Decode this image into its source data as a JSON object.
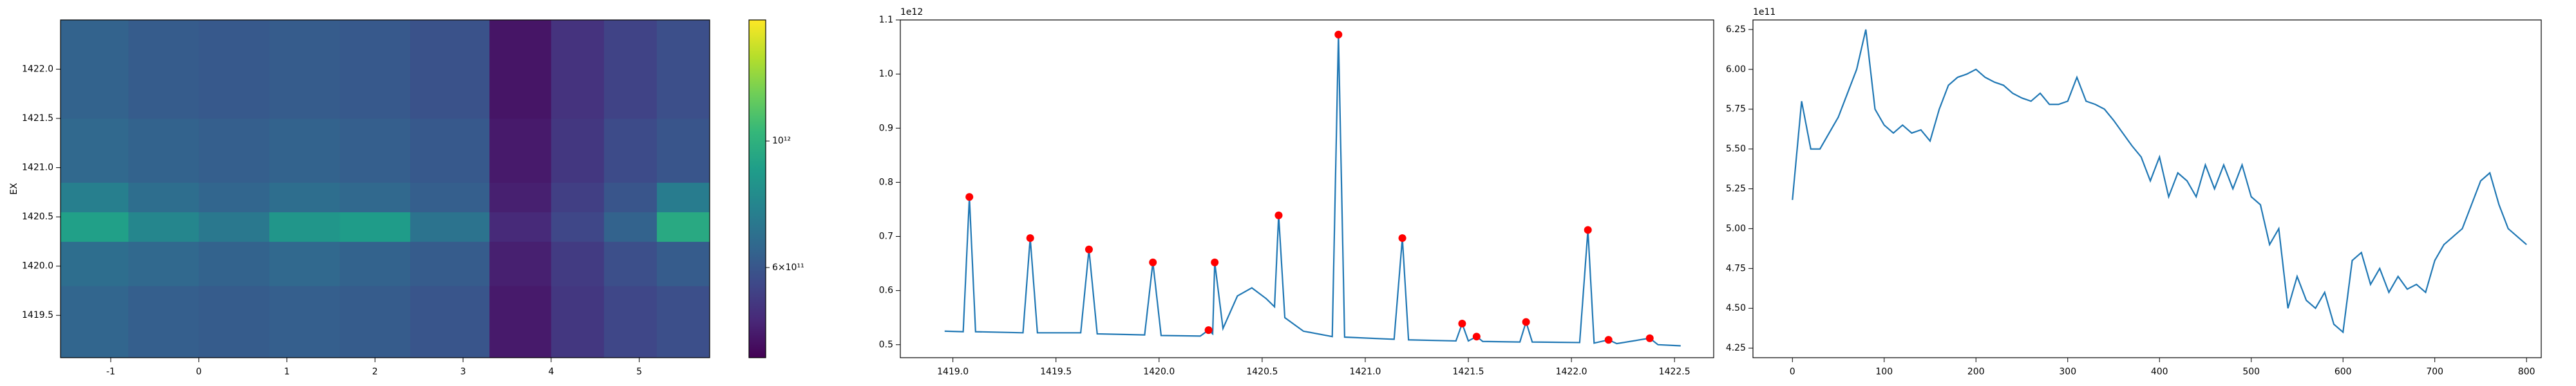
{
  "chart_data": [
    {
      "type": "heatmap",
      "ylabel": "EX",
      "x_edges": [
        -1.57,
        -0.8,
        0,
        0.8,
        1.6,
        2.4,
        3.3,
        4.0,
        4.6,
        5.2,
        5.8
      ],
      "y_edges": [
        1419.07,
        1419.8,
        1420.25,
        1420.55,
        1420.85,
        1421.5,
        1422.5
      ],
      "z": [
        [
          650000000000.0,
          630000000000.0,
          620000000000.0,
          630000000000.0,
          620000000000.0,
          600000000000.0,
          460000000000.0,
          520000000000.0,
          560000000000.0,
          580000000000.0
        ],
        [
          680000000000.0,
          660000000000.0,
          640000000000.0,
          660000000000.0,
          640000000000.0,
          620000000000.0,
          470000000000.0,
          530000000000.0,
          580000000000.0,
          620000000000.0
        ],
        [
          900000000000.0,
          780000000000.0,
          720000000000.0,
          850000000000.0,
          880000000000.0,
          700000000000.0,
          490000000000.0,
          560000000000.0,
          640000000000.0,
          950000000000.0
        ],
        [
          750000000000.0,
          680000000000.0,
          650000000000.0,
          680000000000.0,
          660000000000.0,
          630000000000.0,
          470000000000.0,
          540000000000.0,
          600000000000.0,
          740000000000.0
        ],
        [
          660000000000.0,
          640000000000.0,
          630000000000.0,
          640000000000.0,
          630000000000.0,
          610000000000.0,
          460000000000.0,
          520000000000.0,
          570000000000.0,
          600000000000.0
        ],
        [
          640000000000.0,
          620000000000.0,
          610000000000.0,
          620000000000.0,
          610000000000.0,
          590000000000.0,
          450000000000.0,
          510000000000.0,
          550000000000.0,
          580000000000.0
        ]
      ],
      "xlim": [
        -1.57,
        5.8
      ],
      "xticks": [
        -1,
        0,
        1,
        2,
        3,
        4,
        5
      ],
      "ylim": [
        1419.07,
        1422.5
      ],
      "yticks": [
        1419.5,
        {
          "value": 1420,
          "label": "1420.0"
        },
        1420.5,
        {
          "value": 1421,
          "label": "1421.0"
        },
        1421.5,
        {
          "value": 1422,
          "label": "1422.0"
        }
      ],
      "colorbar": {
        "colormap": "viridis",
        "log": true,
        "lim": [
          417000000000.0,
          1630000000000.0
        ],
        "ticks": [
          {
            "value": 1000000000000.0,
            "label": "10¹²"
          },
          {
            "value": 600000000000.0,
            "label": "6×10¹¹"
          }
        ]
      }
    },
    {
      "type": "line",
      "offset_text": "1e12",
      "series": [
        {
          "color": "#1f77b4",
          "x": [
            1418.96,
            1419.05,
            1419.08,
            1419.11,
            1419.34,
            1419.375,
            1419.41,
            1419.62,
            1419.66,
            1419.7,
            1419.93,
            1419.97,
            1420.01,
            1420.2,
            1420.24,
            1420.26,
            1420.27,
            1420.31,
            1420.38,
            1420.45,
            1420.52,
            1420.56,
            1420.58,
            1420.61,
            1420.7,
            1420.84,
            1420.87,
            1420.9,
            1421.14,
            1421.18,
            1421.21,
            1421.44,
            1421.47,
            1421.5,
            1421.54,
            1421.57,
            1421.75,
            1421.78,
            1421.81,
            1422.04,
            1422.08,
            1422.11,
            1422.18,
            1422.22,
            1422.38,
            1422.42,
            1422.53
          ],
          "values": [
            0.525,
            0.524,
            0.773,
            0.524,
            0.522,
            0.697,
            0.522,
            0.522,
            0.676,
            0.52,
            0.518,
            0.652,
            0.517,
            0.516,
            0.527,
            0.52,
            0.652,
            0.53,
            0.59,
            0.605,
            0.585,
            0.57,
            0.739,
            0.55,
            0.525,
            0.515,
            1.073,
            0.514,
            0.51,
            0.697,
            0.509,
            0.507,
            0.539,
            0.507,
            0.515,
            0.506,
            0.505,
            0.542,
            0.505,
            0.504,
            0.712,
            0.503,
            0.509,
            0.502,
            0.512,
            0.5,
            0.498
          ]
        },
        {
          "color": "red",
          "style": "markers",
          "x": [
            1419.08,
            1419.375,
            1419.66,
            1419.97,
            1420.24,
            1420.27,
            1420.58,
            1420.87,
            1421.18,
            1421.47,
            1421.54,
            1421.78,
            1422.08,
            1422.18,
            1422.38
          ],
          "values": [
            0.773,
            0.697,
            0.676,
            0.652,
            0.527,
            0.652,
            0.739,
            1.073,
            0.697,
            0.539,
            0.515,
            0.542,
            0.712,
            0.509,
            0.512
          ]
        }
      ],
      "xlim": [
        1418.745,
        1422.69
      ],
      "xticks": [
        {
          "value": 1419,
          "label": "1419.0"
        },
        1419.5,
        {
          "value": 1420,
          "label": "1420.0"
        },
        1420.5,
        {
          "value": 1421,
          "label": "1421.0"
        },
        1421.5,
        {
          "value": 1422,
          "label": "1422.0"
        },
        1422.5
      ],
      "ylim": [
        0.476,
        1.1
      ],
      "yticks": [
        0.5,
        0.6,
        0.7,
        0.8,
        0.9,
        {
          "value": 1,
          "label": "1.0"
        },
        1.1
      ]
    },
    {
      "type": "line",
      "offset_text": "1e11",
      "series": [
        {
          "color": "#1f77b4",
          "x": [
            0,
            10,
            20,
            30,
            40,
            50,
            60,
            70,
            80,
            90,
            100,
            110,
            120,
            130,
            140,
            150,
            160,
            170,
            180,
            190,
            200,
            210,
            220,
            230,
            240,
            250,
            260,
            270,
            280,
            290,
            300,
            310,
            320,
            330,
            340,
            350,
            360,
            370,
            380,
            390,
            400,
            410,
            420,
            430,
            440,
            450,
            460,
            470,
            480,
            490,
            500,
            510,
            520,
            530,
            540,
            550,
            560,
            570,
            580,
            590,
            600,
            610,
            620,
            630,
            640,
            650,
            660,
            670,
            680,
            690,
            700,
            710,
            720,
            730,
            740,
            750,
            760,
            770,
            780,
            790,
            800
          ],
          "values": [
            5.18,
            5.8,
            5.5,
            5.5,
            5.6,
            5.7,
            5.85,
            6.0,
            6.25,
            5.75,
            5.65,
            5.6,
            5.65,
            5.6,
            5.62,
            5.55,
            5.75,
            5.9,
            5.95,
            5.97,
            6.0,
            5.95,
            5.92,
            5.9,
            5.85,
            5.82,
            5.8,
            5.85,
            5.78,
            5.78,
            5.8,
            5.95,
            5.8,
            5.78,
            5.75,
            5.68,
            5.6,
            5.52,
            5.45,
            5.3,
            5.45,
            5.2,
            5.35,
            5.3,
            5.2,
            5.4,
            5.25,
            5.4,
            5.25,
            5.4,
            5.2,
            5.15,
            4.9,
            5.0,
            4.5,
            4.7,
            4.55,
            4.5,
            4.6,
            4.4,
            4.35,
            4.8,
            4.85,
            4.65,
            4.75,
            4.6,
            4.7,
            4.62,
            4.65,
            4.6,
            4.8,
            4.9,
            4.95,
            5.0,
            5.15,
            5.3,
            5.35,
            5.15,
            5.0,
            4.95,
            4.9
          ]
        }
      ],
      "xlim": [
        -43,
        816
      ],
      "xticks": [
        0,
        100,
        200,
        300,
        400,
        500,
        600,
        700,
        800
      ],
      "ylim": [
        4.19,
        6.31
      ],
      "yticks": [
        4.25,
        {
          "value": 4.5,
          "label": "4.50"
        },
        4.75,
        {
          "value": 5,
          "label": "5.00"
        },
        5.25,
        {
          "value": 5.5,
          "label": "5.50"
        },
        5.75,
        {
          "value": 6,
          "label": "6.00"
        },
        6.25
      ]
    }
  ]
}
